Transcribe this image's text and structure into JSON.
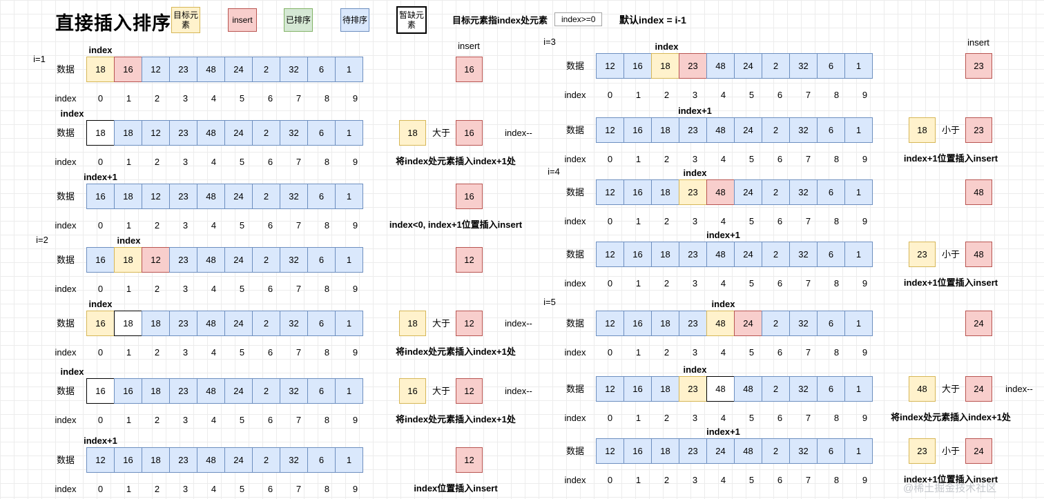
{
  "header": {
    "title": "直接插入排序",
    "legend": [
      {
        "label": "目标元素",
        "type": "yellow"
      },
      {
        "label": "insert",
        "type": "pink"
      },
      {
        "label": "已排序",
        "type": "green"
      },
      {
        "label": "待排序",
        "type": "blue"
      },
      {
        "label": "暂缺元素",
        "type": "white"
      }
    ],
    "note_target": "目标元素指index处元素",
    "index_condition": "index>=0",
    "note_default": "默认index = i-1"
  },
  "colors": {
    "target_yellow": "#fff2cc",
    "target_yellow_border": "#d6b656",
    "insert_pink": "#f8cecc",
    "insert_pink_border": "#b85450",
    "unsorted_blue": "#dae8fc",
    "unsorted_blue_border": "#6c8ebf",
    "sorted_green": "#d5e8d4",
    "sorted_green_border": "#82b366",
    "vacant_white": "#ffffff",
    "vacant_border": "#000000"
  },
  "labels": {
    "data_label": "数据",
    "index_label": "index"
  },
  "index_numbers": [
    "0",
    "1",
    "2",
    "3",
    "4",
    "5",
    "6",
    "7",
    "8",
    "9"
  ],
  "iteration_labels": [
    "i=1",
    "i=2",
    "i=3",
    "i=4",
    "i=5"
  ],
  "watermark": "@稀土掘金技术社区",
  "columns": {
    "left": {
      "rows": [
        {
          "pointer": {
            "label": "index",
            "cell": 0
          },
          "values": [
            "18",
            "16",
            "12",
            "23",
            "48",
            "24",
            "2",
            "32",
            "6",
            "1"
          ],
          "types": [
            "yellow",
            "pink",
            "blue",
            "blue",
            "blue",
            "blue",
            "blue",
            "blue",
            "blue",
            "blue"
          ],
          "annotation": {
            "kind": "insert",
            "insert_label": "insert",
            "value": "16"
          },
          "note": null
        },
        {
          "pointer": {
            "label": "index",
            "cell": -1
          },
          "values": [
            "18",
            "18",
            "12",
            "23",
            "48",
            "24",
            "2",
            "32",
            "6",
            "1"
          ],
          "types": [
            "white",
            "blue",
            "blue",
            "blue",
            "blue",
            "blue",
            "blue",
            "blue",
            "blue",
            "blue"
          ],
          "annotation": {
            "kind": "compare",
            "left": "18",
            "op": "大于",
            "right": "16",
            "extra": "index--"
          },
          "note": "将index处元素插入index+1处"
        },
        {
          "pointer": {
            "label": "index+1",
            "cell": 0
          },
          "values": [
            "16",
            "18",
            "12",
            "23",
            "48",
            "24",
            "2",
            "32",
            "6",
            "1"
          ],
          "types": [
            "blue",
            "blue",
            "blue",
            "blue",
            "blue",
            "blue",
            "blue",
            "blue",
            "blue",
            "blue"
          ],
          "annotation": {
            "kind": "insert",
            "value": "16"
          },
          "note": "index<0, index+1位置插入insert"
        },
        {
          "pointer": {
            "label": "index",
            "cell": 1
          },
          "values": [
            "16",
            "18",
            "12",
            "23",
            "48",
            "24",
            "2",
            "32",
            "6",
            "1"
          ],
          "types": [
            "blue",
            "yellow",
            "pink",
            "blue",
            "blue",
            "blue",
            "blue",
            "blue",
            "blue",
            "blue"
          ],
          "annotation": {
            "kind": "insert",
            "value": "12"
          },
          "note": null
        },
        {
          "pointer": {
            "label": "index",
            "cell": 0
          },
          "values": [
            "16",
            "18",
            "18",
            "23",
            "48",
            "24",
            "2",
            "32",
            "6",
            "1"
          ],
          "types": [
            "yellow",
            "white",
            "blue",
            "blue",
            "blue",
            "blue",
            "blue",
            "blue",
            "blue",
            "blue"
          ],
          "annotation": {
            "kind": "compare",
            "left": "18",
            "op": "大于",
            "right": "12",
            "extra": "index--"
          },
          "note": "将index处元素插入index+1处"
        },
        {
          "pointer": {
            "label": "index",
            "cell": -1
          },
          "values": [
            "16",
            "16",
            "18",
            "23",
            "48",
            "24",
            "2",
            "32",
            "6",
            "1"
          ],
          "types": [
            "white",
            "blue",
            "blue",
            "blue",
            "blue",
            "blue",
            "blue",
            "blue",
            "blue",
            "blue"
          ],
          "annotation": {
            "kind": "compare",
            "left": "16",
            "op": "大于",
            "right": "12",
            "extra": "index--"
          },
          "note": "将index处元素插入index+1处"
        },
        {
          "pointer": {
            "label": "index+1",
            "cell": 0
          },
          "values": [
            "12",
            "16",
            "18",
            "23",
            "48",
            "24",
            "2",
            "32",
            "6",
            "1"
          ],
          "types": [
            "blue",
            "blue",
            "blue",
            "blue",
            "blue",
            "blue",
            "blue",
            "blue",
            "blue",
            "blue"
          ],
          "annotation": {
            "kind": "insert",
            "value": "12"
          },
          "note": "index位置插入insert"
        }
      ]
    },
    "right": {
      "rows": [
        {
          "pointer": {
            "label": "index",
            "cell": 2
          },
          "values": [
            "12",
            "16",
            "18",
            "23",
            "48",
            "24",
            "2",
            "32",
            "6",
            "1"
          ],
          "types": [
            "blue",
            "blue",
            "yellow",
            "pink",
            "blue",
            "blue",
            "blue",
            "blue",
            "blue",
            "blue"
          ],
          "annotation": {
            "kind": "insert",
            "insert_label": "insert",
            "value": "23"
          },
          "note": null
        },
        {
          "pointer": {
            "label": "index+1",
            "cell": 3
          },
          "values": [
            "12",
            "16",
            "18",
            "23",
            "48",
            "24",
            "2",
            "32",
            "6",
            "1"
          ],
          "types": [
            "blue",
            "blue",
            "blue",
            "blue",
            "blue",
            "blue",
            "blue",
            "blue",
            "blue",
            "blue"
          ],
          "annotation": {
            "kind": "compare",
            "left": "18",
            "op": "小于",
            "right": "23"
          },
          "note": "index+1位置插入insert"
        },
        {
          "pointer": {
            "label": "index",
            "cell": 3
          },
          "values": [
            "12",
            "16",
            "18",
            "23",
            "48",
            "24",
            "2",
            "32",
            "6",
            "1"
          ],
          "types": [
            "blue",
            "blue",
            "blue",
            "yellow",
            "pink",
            "blue",
            "blue",
            "blue",
            "blue",
            "blue"
          ],
          "annotation": {
            "kind": "insert",
            "value": "48"
          },
          "note": null
        },
        {
          "pointer": {
            "label": "index+1",
            "cell": 4
          },
          "values": [
            "12",
            "16",
            "18",
            "23",
            "48",
            "24",
            "2",
            "32",
            "6",
            "1"
          ],
          "types": [
            "blue",
            "blue",
            "blue",
            "blue",
            "blue",
            "blue",
            "blue",
            "blue",
            "blue",
            "blue"
          ],
          "annotation": {
            "kind": "compare",
            "left": "23",
            "op": "小于",
            "right": "48"
          },
          "note": "index+1位置插入insert"
        },
        {
          "pointer": {
            "label": "index",
            "cell": 4
          },
          "values": [
            "12",
            "16",
            "18",
            "23",
            "48",
            "24",
            "2",
            "32",
            "6",
            "1"
          ],
          "types": [
            "blue",
            "blue",
            "blue",
            "blue",
            "yellow",
            "pink",
            "blue",
            "blue",
            "blue",
            "blue"
          ],
          "annotation": {
            "kind": "insert",
            "value": "24"
          },
          "note": null
        },
        {
          "pointer": {
            "label": "index",
            "cell": 3
          },
          "values": [
            "12",
            "16",
            "18",
            "23",
            "48",
            "48",
            "2",
            "32",
            "6",
            "1"
          ],
          "types": [
            "blue",
            "blue",
            "blue",
            "yellow",
            "white",
            "blue",
            "blue",
            "blue",
            "blue",
            "blue"
          ],
          "annotation": {
            "kind": "compare",
            "left": "48",
            "op": "大于",
            "right": "24",
            "extra": "index--"
          },
          "note": "将index处元素插入index+1处"
        },
        {
          "pointer": {
            "label": "index+1",
            "cell": 4
          },
          "values": [
            "12",
            "16",
            "18",
            "23",
            "24",
            "48",
            "2",
            "32",
            "6",
            "1"
          ],
          "types": [
            "blue",
            "blue",
            "blue",
            "blue",
            "blue",
            "blue",
            "blue",
            "blue",
            "blue",
            "blue"
          ],
          "annotation": {
            "kind": "compare",
            "left": "23",
            "op": "小于",
            "right": "24"
          },
          "note": "index+1位置插入insert"
        }
      ]
    }
  }
}
